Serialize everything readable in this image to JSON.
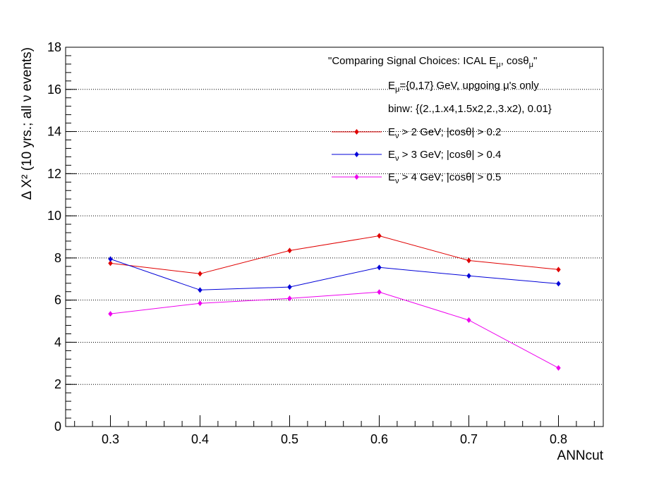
{
  "chart_data": {
    "type": "line",
    "title": "",
    "xlabel": "ANNcut",
    "ylabel": "Δ X² (10 yrs.; all  ν events)",
    "x_ticks": [
      "0.3",
      "0.4",
      "0.5",
      "0.6",
      "0.7",
      "0.8"
    ],
    "y_ticks": [
      "0",
      "2",
      "4",
      "6",
      "8",
      "10",
      "12",
      "14",
      "16",
      "18"
    ],
    "xlim": [
      0.25,
      0.85
    ],
    "ylim": [
      0,
      18
    ],
    "grid": "horizontal dotted",
    "x": [
      0.3,
      0.4,
      0.5,
      0.6,
      0.7,
      0.8
    ],
    "annotations": [
      {
        "text": "\"Comparing Signal Choices: ICAL E",
        "sub": "μ",
        "tail": ", cosθ",
        "sub2": "μ",
        "tail2": "\""
      },
      {
        "text": "E",
        "sub": "μ",
        "tail": "={0,17} GeV, upgoing μ's only",
        "sub2": "",
        "tail2": ""
      },
      {
        "text": "binw:  {(2.,1.x4,1.5x2,2.,3.x2), 0.01}",
        "sub": "",
        "tail": "",
        "sub2": "",
        "tail2": ""
      }
    ],
    "legend_position": "top-right",
    "series": [
      {
        "name_main": "E",
        "name_sub": "ν",
        "name_tail": " > 2 GeV; |cosθ| > 0.2",
        "color": "#e00000",
        "values": [
          7.75,
          7.25,
          8.35,
          9.05,
          7.88,
          7.45
        ]
      },
      {
        "name_main": "E",
        "name_sub": "ν",
        "name_tail": " > 3 GeV; |cosθ| > 0.4",
        "color": "#0000d8",
        "values": [
          7.95,
          6.48,
          6.62,
          7.55,
          7.15,
          6.78
        ]
      },
      {
        "name_main": "E",
        "name_sub": "ν",
        "name_tail": " > 4 GeV; |cosθ| > 0.5",
        "color": "#ee00ee",
        "values": [
          5.35,
          5.85,
          6.08,
          6.38,
          5.05,
          2.78
        ]
      }
    ]
  }
}
